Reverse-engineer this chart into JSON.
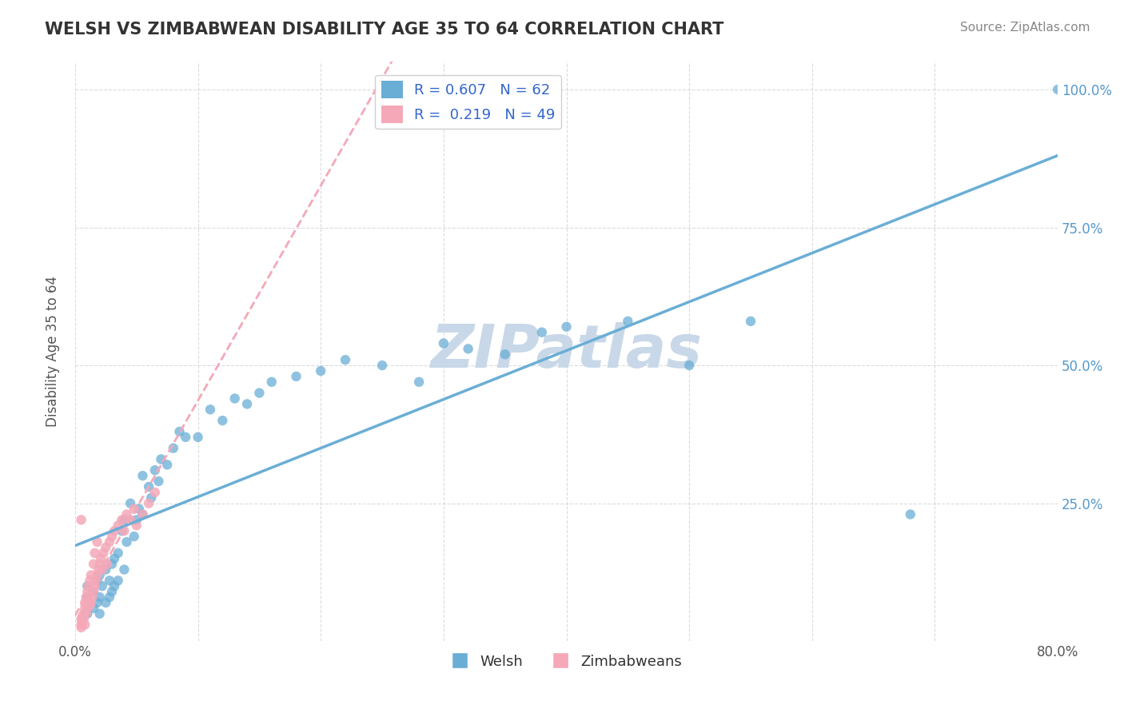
{
  "title": "WELSH VS ZIMBABWEAN DISABILITY AGE 35 TO 64 CORRELATION CHART",
  "source": "Source: ZipAtlas.com",
  "ylabel": "Disability Age 35 to 64",
  "xlim": [
    0.0,
    0.8
  ],
  "ylim": [
    0.0,
    1.05
  ],
  "xticks": [
    0.0,
    0.1,
    0.2,
    0.3,
    0.4,
    0.5,
    0.6,
    0.7,
    0.8
  ],
  "xticklabels": [
    "0.0%",
    "",
    "",
    "",
    "",
    "",
    "",
    "",
    "80.0%"
  ],
  "yticks": [
    0.0,
    0.25,
    0.5,
    0.75,
    1.0
  ],
  "yticklabels": [
    "",
    "25.0%",
    "50.0%",
    "75.0%",
    "100.0%"
  ],
  "welsh_color": "#6aaed6",
  "zimbabwean_color": "#f4a8b8",
  "welsh_R": 0.607,
  "welsh_N": 62,
  "zimbabwean_R": 0.219,
  "zimbabwean_N": 49,
  "welsh_x": [
    0.01,
    0.01,
    0.01,
    0.015,
    0.015,
    0.018,
    0.018,
    0.02,
    0.02,
    0.02,
    0.022,
    0.025,
    0.025,
    0.028,
    0.028,
    0.03,
    0.03,
    0.032,
    0.032,
    0.035,
    0.035,
    0.038,
    0.04,
    0.04,
    0.042,
    0.045,
    0.048,
    0.05,
    0.052,
    0.055,
    0.055,
    0.06,
    0.062,
    0.065,
    0.068,
    0.07,
    0.075,
    0.08,
    0.085,
    0.09,
    0.1,
    0.11,
    0.12,
    0.13,
    0.14,
    0.15,
    0.16,
    0.18,
    0.2,
    0.22,
    0.25,
    0.28,
    0.3,
    0.32,
    0.35,
    0.38,
    0.4,
    0.45,
    0.5,
    0.55,
    0.68,
    0.8
  ],
  "welsh_y": [
    0.05,
    0.08,
    0.1,
    0.06,
    0.09,
    0.07,
    0.11,
    0.05,
    0.08,
    0.12,
    0.1,
    0.07,
    0.13,
    0.08,
    0.11,
    0.09,
    0.14,
    0.1,
    0.15,
    0.11,
    0.16,
    0.2,
    0.13,
    0.22,
    0.18,
    0.25,
    0.19,
    0.22,
    0.24,
    0.23,
    0.3,
    0.28,
    0.26,
    0.31,
    0.29,
    0.33,
    0.32,
    0.35,
    0.38,
    0.37,
    0.37,
    0.42,
    0.4,
    0.44,
    0.43,
    0.45,
    0.47,
    0.48,
    0.49,
    0.51,
    0.5,
    0.47,
    0.54,
    0.53,
    0.52,
    0.56,
    0.57,
    0.58,
    0.5,
    0.58,
    0.23,
    1.0
  ],
  "zimbabwean_x": [
    0.005,
    0.005,
    0.005,
    0.006,
    0.006,
    0.007,
    0.007,
    0.008,
    0.008,
    0.008,
    0.009,
    0.009,
    0.01,
    0.01,
    0.011,
    0.011,
    0.012,
    0.012,
    0.013,
    0.013,
    0.014,
    0.015,
    0.015,
    0.016,
    0.016,
    0.017,
    0.018,
    0.018,
    0.019,
    0.02,
    0.021,
    0.022,
    0.023,
    0.025,
    0.026,
    0.028,
    0.03,
    0.032,
    0.035,
    0.038,
    0.04,
    0.042,
    0.045,
    0.048,
    0.05,
    0.055,
    0.06,
    0.065,
    0.005
  ],
  "zimbabwean_y": [
    0.025,
    0.03,
    0.04,
    0.035,
    0.045,
    0.04,
    0.05,
    0.03,
    0.06,
    0.07,
    0.05,
    0.08,
    0.06,
    0.09,
    0.07,
    0.1,
    0.065,
    0.11,
    0.07,
    0.12,
    0.08,
    0.09,
    0.14,
    0.1,
    0.16,
    0.11,
    0.12,
    0.18,
    0.13,
    0.14,
    0.15,
    0.13,
    0.16,
    0.17,
    0.14,
    0.18,
    0.19,
    0.2,
    0.21,
    0.22,
    0.2,
    0.23,
    0.22,
    0.24,
    0.21,
    0.23,
    0.25,
    0.27,
    0.22
  ],
  "watermark": "ZIPatlas",
  "watermark_color": "#c8d8e8",
  "background_color": "#ffffff",
  "grid_color": "#cccccc"
}
